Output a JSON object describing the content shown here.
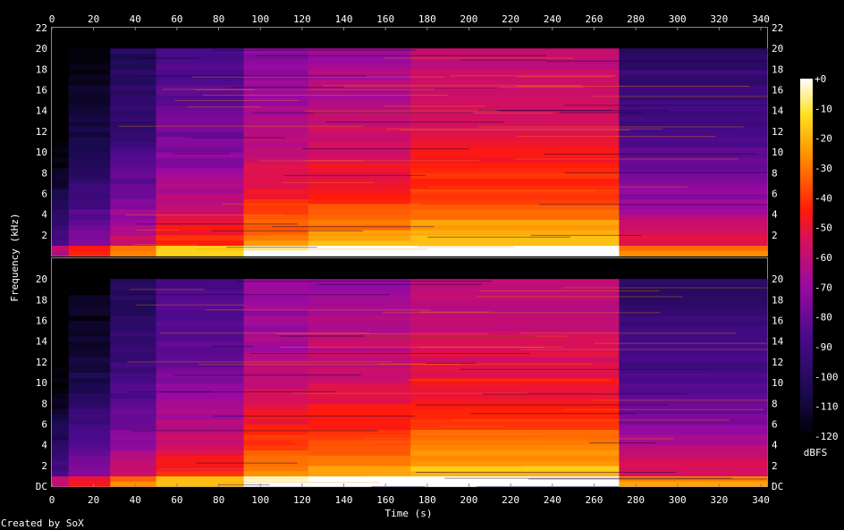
{
  "chart_data": {
    "type": "heatmap",
    "title": "",
    "xlabel": "Time (s)",
    "ylabel": "Frequency (kHz)",
    "xlim": [
      0,
      343
    ],
    "ylim": [
      0,
      22
    ],
    "x_ticks": [
      "0",
      "20",
      "40",
      "60",
      "80",
      "100",
      "120",
      "140",
      "160",
      "180",
      "200",
      "220",
      "240",
      "260",
      "280",
      "300",
      "320",
      "340"
    ],
    "y_ticks_top": [
      "2",
      "4",
      "6",
      "8",
      "10",
      "12",
      "14",
      "16",
      "18",
      "20",
      "22"
    ],
    "y_ticks_bottom": [
      "DC",
      "2",
      "4",
      "6",
      "8",
      "10",
      "12",
      "14",
      "16",
      "18",
      "20"
    ],
    "channels": 2,
    "colorbar": {
      "label": "dBFS",
      "ticks": [
        "+0",
        "-10",
        "-20",
        "-30",
        "-40",
        "-50",
        "-60",
        "-70",
        "-80",
        "-90",
        "-100",
        "-110",
        "-120"
      ],
      "range": [
        -120,
        0
      ]
    },
    "segments": [
      {
        "t0": 0,
        "t1": 8,
        "level_db": -115
      },
      {
        "t0": 8,
        "t1": 28,
        "level_db": -100
      },
      {
        "t0": 28,
        "t1": 50,
        "level_db": -85
      },
      {
        "t0": 50,
        "t1": 92,
        "level_db": -70
      },
      {
        "t0": 92,
        "t1": 123,
        "level_db": -55
      },
      {
        "t0": 123,
        "t1": 172,
        "level_db": -50
      },
      {
        "t0": 172,
        "t1": 272,
        "level_db": -45
      },
      {
        "t0": 272,
        "t1": 343,
        "level_db": -80
      }
    ],
    "bandwidth_khz": 20,
    "footer": "Created by SoX",
    "colors": {
      "background": "#000000",
      "low": "#000000",
      "mid": "#ff0000",
      "high": "#ffffff"
    }
  }
}
